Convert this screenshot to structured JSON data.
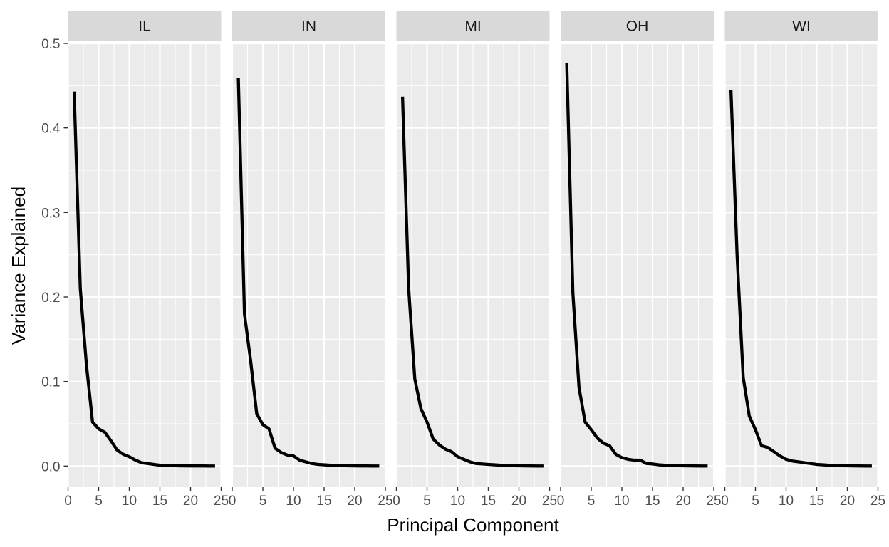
{
  "chart_data": {
    "type": "line",
    "xlabel": "Principal Component",
    "ylabel": "Variance Explained",
    "xlim": [
      0,
      25
    ],
    "ylim": [
      -0.025,
      0.5
    ],
    "x_ticks": [
      0,
      5,
      10,
      15,
      20,
      25
    ],
    "x_tick_labels": [
      "0",
      "5",
      "10",
      "15",
      "20",
      "25"
    ],
    "y_ticks": [
      0.0,
      0.1,
      0.2,
      0.3,
      0.4,
      0.5
    ],
    "y_tick_labels": [
      "0.0",
      "0.1",
      "0.2",
      "0.3",
      "0.4",
      "0.5"
    ],
    "grid": true,
    "x": [
      1,
      2,
      3,
      4,
      5,
      6,
      7,
      8,
      9,
      10,
      11,
      12,
      13,
      14,
      15,
      16,
      17,
      18,
      19,
      20,
      21,
      22,
      23,
      24
    ],
    "panels": [
      {
        "label": "IL",
        "values": [
          0.443,
          0.21,
          0.12,
          0.052,
          0.044,
          0.04,
          0.03,
          0.019,
          0.014,
          0.011,
          0.007,
          0.004,
          0.003,
          0.002,
          0.001,
          0.0008,
          0.0005,
          0.0003,
          0.0002,
          0.0001,
          0.0001,
          0.0001,
          0.0,
          0.0
        ]
      },
      {
        "label": "IN",
        "values": [
          0.459,
          0.18,
          0.125,
          0.062,
          0.049,
          0.044,
          0.021,
          0.016,
          0.013,
          0.012,
          0.007,
          0.005,
          0.003,
          0.002,
          0.0015,
          0.001,
          0.0008,
          0.0005,
          0.0003,
          0.0002,
          0.0001,
          0.0001,
          0.0,
          0.0
        ]
      },
      {
        "label": "MI",
        "values": [
          0.437,
          0.21,
          0.103,
          0.068,
          0.052,
          0.032,
          0.025,
          0.02,
          0.017,
          0.011,
          0.008,
          0.005,
          0.003,
          0.0025,
          0.002,
          0.0015,
          0.001,
          0.0008,
          0.0005,
          0.0003,
          0.0002,
          0.0001,
          0.0,
          0.0
        ]
      },
      {
        "label": "OH",
        "values": [
          0.477,
          0.205,
          0.093,
          0.052,
          0.043,
          0.033,
          0.027,
          0.024,
          0.014,
          0.01,
          0.008,
          0.007,
          0.007,
          0.003,
          0.0025,
          0.0015,
          0.001,
          0.0008,
          0.0005,
          0.0003,
          0.0002,
          0.0001,
          0.0,
          0.0
        ]
      },
      {
        "label": "WI",
        "values": [
          0.445,
          0.25,
          0.105,
          0.059,
          0.043,
          0.024,
          0.022,
          0.017,
          0.012,
          0.008,
          0.006,
          0.005,
          0.004,
          0.003,
          0.002,
          0.0015,
          0.001,
          0.0007,
          0.0005,
          0.0003,
          0.0002,
          0.0001,
          0.0,
          0.0
        ]
      }
    ],
    "colors": {
      "line": "#000000",
      "panel_background": "#ebebeb",
      "strip_background": "#d9d9d9",
      "grid": "#ffffff",
      "tick_text": "#4d4d4d",
      "strip_text": "#1a1a1a"
    }
  }
}
